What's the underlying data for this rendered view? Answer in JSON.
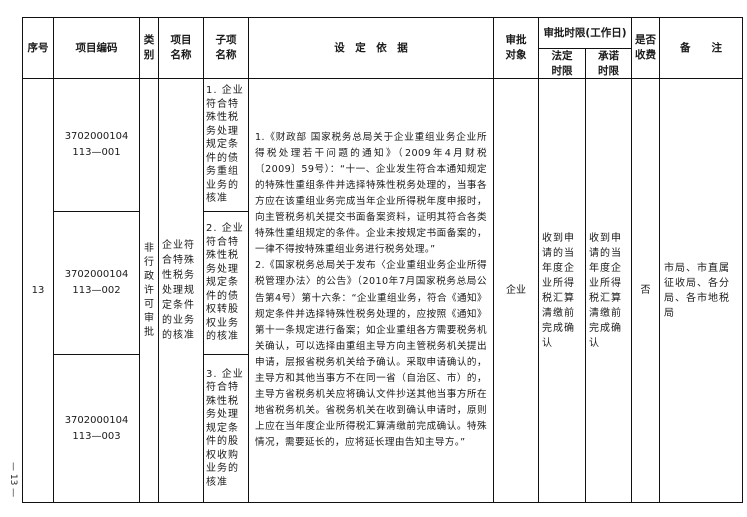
{
  "header": {
    "seq": "序号",
    "code": "项目编码",
    "category": "类别",
    "item_name": "项目名称",
    "sub_item": "子项名称",
    "basis": "设　定　依　据",
    "target": "审批对象",
    "time_limit": "审批时限(工作日)",
    "legal": "法定时限",
    "promise": "承诺时限",
    "fee": "是否收费",
    "remark": "备　　注"
  },
  "row": {
    "seq": "13",
    "codes": [
      "3702000104113—001",
      "3702000104113—002",
      "3702000104113—003"
    ],
    "category": "非行政许可审批",
    "item_name": "企业符合特殊性税务处理规定条件的业务的核准",
    "sub_items": [
      "1. 企业符合特殊性税务处理规定条件的债务重组业务的核准",
      "2. 企业符合特殊性税务处理规定条件的债权转股权业务的核准",
      "3. 企业符合特殊性税务处理规定条件的股权收购业务的核准"
    ],
    "basis": "1.《财政部 国家税务总局关于企业重组业务企业所得税处理若干问题的通知》（2009年4月财税〔2009〕59号）：“十一、企业发生符合本通知规定的特殊性重组条件并选择特殊性税务处理的，当事各方应在该重组业务完成当年企业所得税年度申报时，向主管税务机关提交书面备案资料，证明其符合各类特殊性重组规定的条件。企业未按规定书面备案的，一律不得按特殊重组业务进行税务处理。”\n2.《国家税务总局关于发布〈企业重组业务企业所得税管理办法〉的公告》（2010年7月国家税务总局公告第4号）第十六条：“企业重组业务，符合《通知》规定条件并选择特殊性税务处理的，应按照《通知》第十一条规定进行备案；如企业重组各方需要税务机关确认，可以选择由重组主导方向主管税务机关提出申请，层报省税务机关给予确认。采取申请确认的，主导方和其他当事方不在同一省（自治区、市）的，主导方省税务机关应将确认文件抄送其他当事方所在地省税务机关。省税务机关在收到确认申请时，原则上应在当年度企业所得税汇算清缴前完成确认。特殊情况，需要延长的，应将延长理由告知主导方。”",
    "target": "企业",
    "legal": "收到申请的当年度企业所得税汇算清缴前完成确认",
    "promise": "收到申请的当年度企业所得税汇算清缴前完成确认",
    "fee": "否",
    "remark": "市局、市直属征收局、各分局、各市地税局"
  },
  "page_number": "— 13 —"
}
